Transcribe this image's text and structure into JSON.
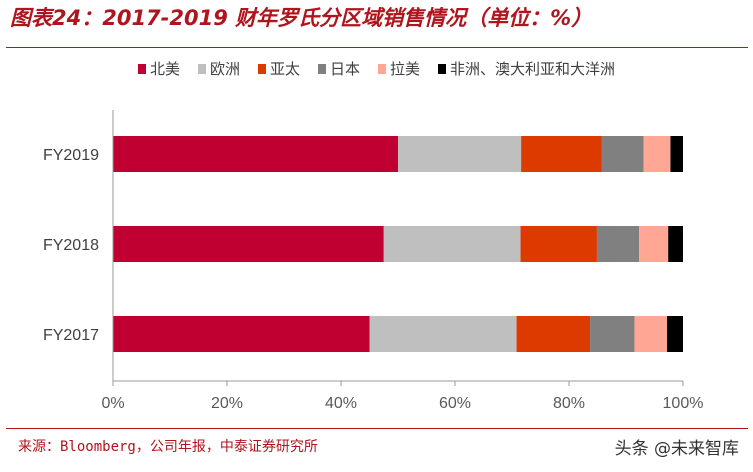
{
  "header": {
    "title": "图表24：2017-2019 财年罗氏分区域销售情况（单位：%）"
  },
  "footer": {
    "source": "来源：Bloomberg，公司年报，中泰证券研究所",
    "watermark": "头条 @未来智库"
  },
  "chart_data": {
    "type": "bar",
    "orientation": "horizontal",
    "stacked": "percent",
    "categories": [
      "FY2019",
      "FY2018",
      "FY2017"
    ],
    "series": [
      {
        "name": "北美",
        "color": "#c00030",
        "values": [
          50.0,
          47.5,
          45.0
        ]
      },
      {
        "name": "欧洲",
        "color": "#bfbfbf",
        "values": [
          21.6,
          24.0,
          25.8
        ]
      },
      {
        "name": "亚太",
        "color": "#dd3a00",
        "values": [
          14.1,
          13.4,
          12.9
        ]
      },
      {
        "name": "日本",
        "color": "#808080",
        "values": [
          7.4,
          7.4,
          7.8
        ]
      },
      {
        "name": "拉美",
        "color": "#ffa794",
        "values": [
          4.7,
          5.1,
          5.7
        ]
      },
      {
        "name": "非洲、澳大利亚和大洋洲",
        "color": "#000000",
        "values": [
          2.2,
          2.6,
          2.8
        ]
      }
    ],
    "xlim": [
      0,
      100
    ],
    "xticks": [
      "0%",
      "20%",
      "40%",
      "60%",
      "80%",
      "100%"
    ],
    "grid": false,
    "legend": "top"
  }
}
